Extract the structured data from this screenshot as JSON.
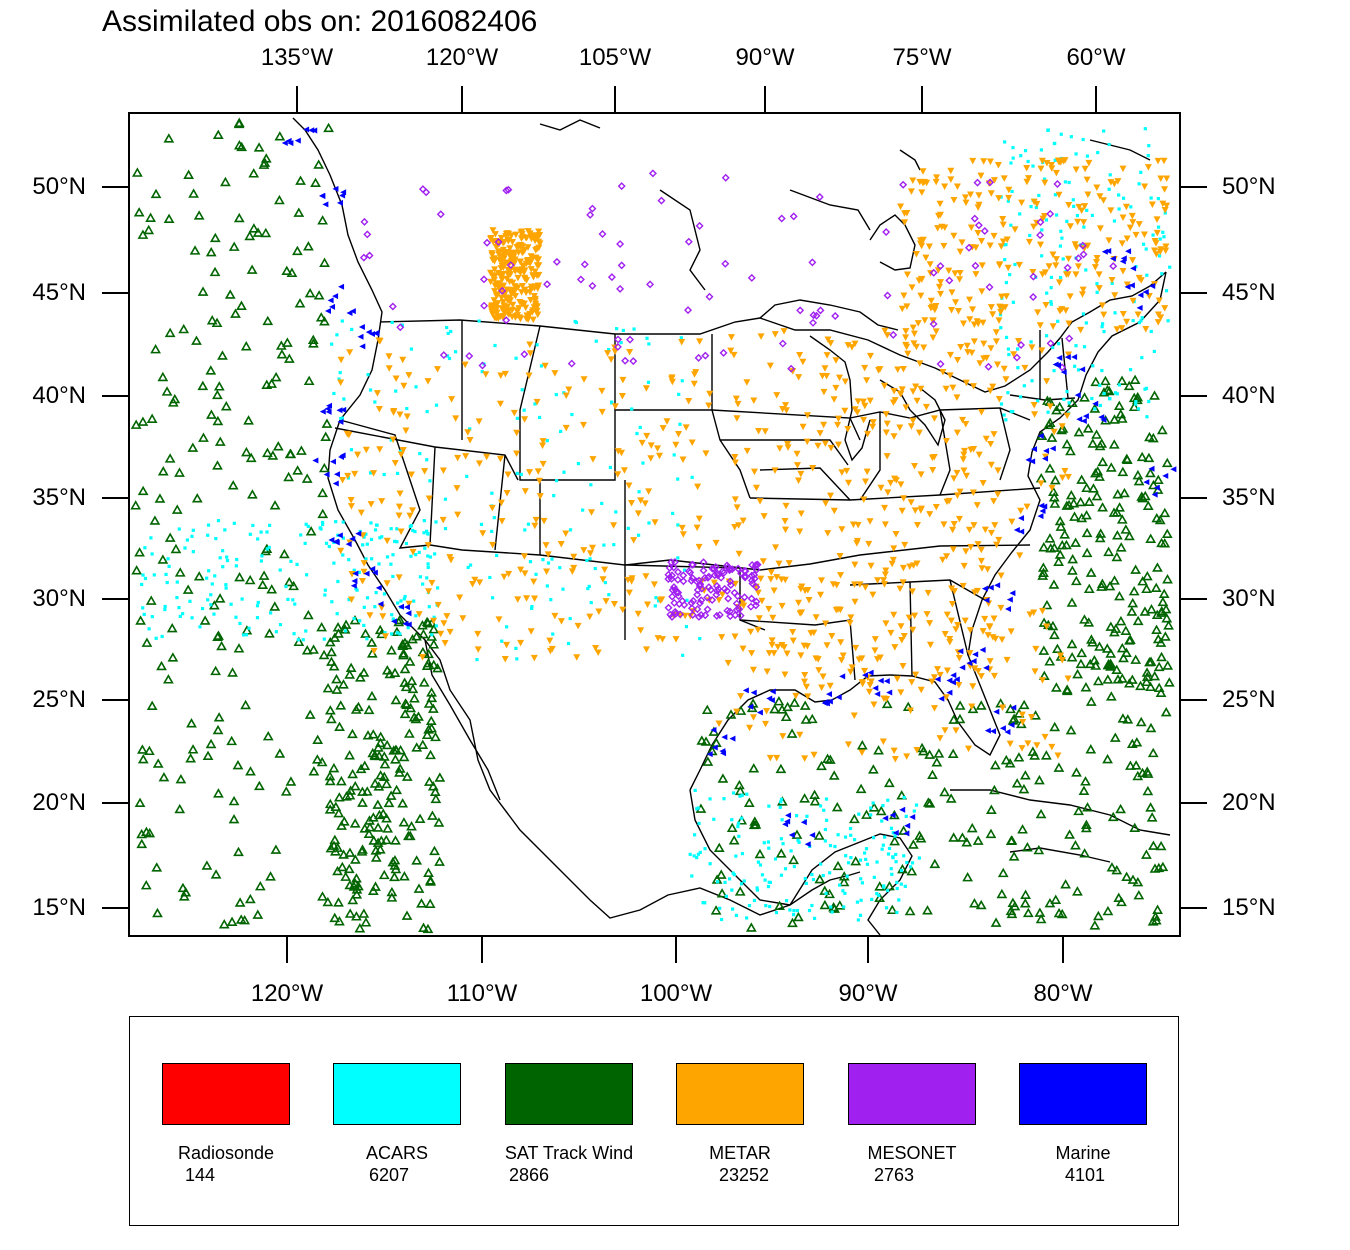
{
  "title": "Assimilated obs on: 2016082406",
  "axes": {
    "top_lon_labels": [
      "135°W",
      "120°W",
      "105°W",
      "90°W",
      "75°W",
      "60°W"
    ],
    "bottom_lon_labels": [
      "120°W",
      "110°W",
      "100°W",
      "90°W",
      "80°W"
    ],
    "lat_labels": [
      "50°N",
      "45°N",
      "40°N",
      "35°N",
      "30°N",
      "25°N",
      "20°N",
      "15°N"
    ]
  },
  "legend": [
    {
      "name": "Radiosonde",
      "count": "144",
      "color": "#ff0000"
    },
    {
      "name": "ACARS",
      "count": "6207",
      "color": "#00ffff"
    },
    {
      "name": "SAT Track Wind",
      "count": "2866",
      "color": "#006400"
    },
    {
      "name": "METAR",
      "count": "23252",
      "color": "#ffa500"
    },
    {
      "name": "MESONET",
      "count": "2763",
      "color": "#a020f0"
    },
    {
      "name": "Marine",
      "count": "4101",
      "color": "#0000ff"
    }
  ],
  "map_colors": {
    "background": "#ffffff",
    "outline": "#000000"
  }
}
